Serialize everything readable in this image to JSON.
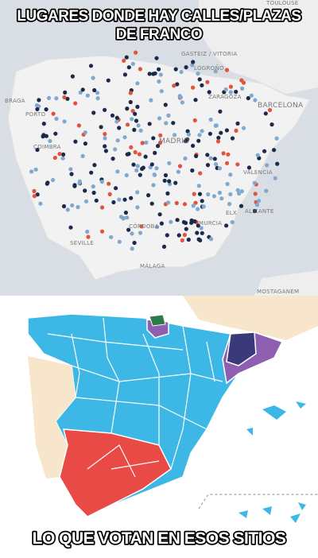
{
  "captions": {
    "top": [
      "LUGARES DONDE HAY CALLES/PLAZAS",
      "DE FRANCO"
    ],
    "bottom": "LO QUE VOTAN EN ESOS SITIOS"
  },
  "map_labels": [
    "TOULOUSE",
    "GASTEIZ / VITORIA",
    "LOGROÑO",
    "BRAGA",
    "PORTO",
    "ZARAGOZA",
    "BARCELONA",
    "COIMBRA",
    "MADRID",
    "VALENCIA",
    "ELX",
    "ALICANTE",
    "MURCIA",
    "CÓRDOBA",
    "SEVILLE",
    "MÁLAGA",
    "MOSTAGANEM"
  ]
}
